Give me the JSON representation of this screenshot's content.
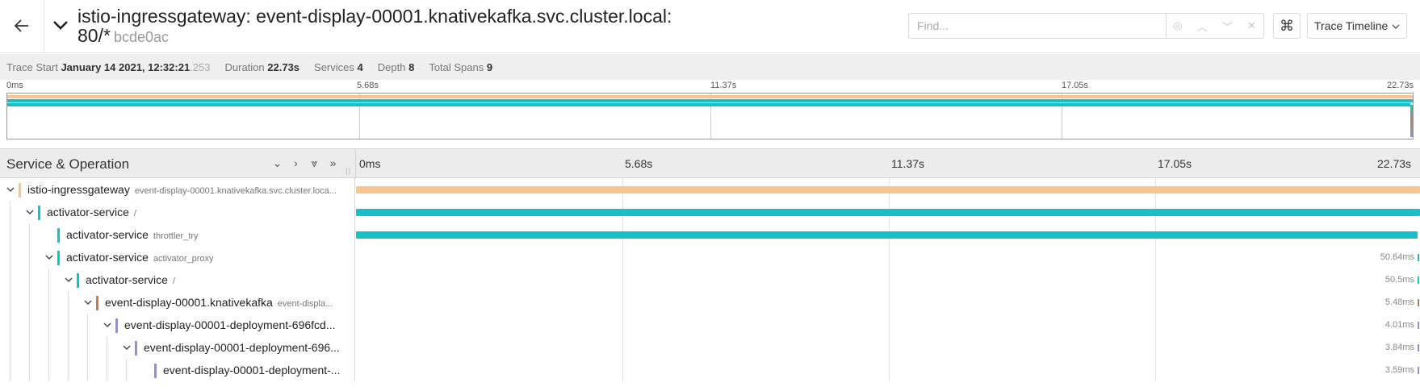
{
  "header": {
    "back_icon": "arrow-left-icon",
    "collapse_icon": "chevron-down-icon",
    "title": "istio-ingressgateway: event-display-00001.knativekafka.svc.cluster.local: 80/*",
    "trace_id": "bcde0ac",
    "find_placeholder": "Find...",
    "find_tools": [
      "target-icon",
      "chevron-up-icon",
      "chevron-down-icon",
      "close-icon"
    ],
    "keyboard_icon": "⌘",
    "view_select": "Trace Timeline"
  },
  "trace_info": {
    "start_label": "Trace Start",
    "start_value": "January 14 2021, 12:32:21",
    "start_ms": ".253",
    "duration_label": "Duration",
    "duration_value": "22.73s",
    "services_label": "Services",
    "services_value": "4",
    "depth_label": "Depth",
    "depth_value": "8",
    "spans_label": "Total Spans",
    "spans_value": "9"
  },
  "minimap": {
    "ticks": [
      "0ms",
      "5.68s",
      "11.37s",
      "17.05s",
      "22.73s"
    ]
  },
  "timeline_header": {
    "title": "Service & Operation",
    "ticks": [
      "0ms",
      "5.68s",
      "11.37s",
      "17.05s",
      "22.73s"
    ]
  },
  "colors": {
    "istio": "#f9c48e",
    "activator": "#17c0c9",
    "knativekafka": "#b97f5d",
    "deployment": "#8f8fe0"
  },
  "spans": [
    {
      "service": "istio-ingressgateway",
      "operation": "event-display-00001.knativekafka.svc.cluster.loca...",
      "depth": 0,
      "expanded": true,
      "color": "#f9c48e",
      "duration": "",
      "start_frac": 0.0,
      "width_frac": 1.0
    },
    {
      "service": "activator-service",
      "operation": "/",
      "depth": 1,
      "expanded": true,
      "color": "#17c0c9",
      "duration": "",
      "start_frac": 0.0,
      "width_frac": 1.0
    },
    {
      "service": "activator-service",
      "operation": "throttler_try",
      "depth": 2,
      "expanded": null,
      "color": "#17c0c9",
      "duration": "",
      "start_frac": 0.0,
      "width_frac": 0.998
    },
    {
      "service": "activator-service",
      "operation": "activator_proxy",
      "depth": 2,
      "expanded": true,
      "color": "#17c0c9",
      "duration": "50.64ms",
      "start_frac": 0.998,
      "width_frac": 0.002
    },
    {
      "service": "activator-service",
      "operation": "/",
      "depth": 3,
      "expanded": true,
      "color": "#17c0c9",
      "duration": "50.5ms",
      "start_frac": 0.998,
      "width_frac": 0.002
    },
    {
      "service": "event-display-00001.knativekafka",
      "operation": "event-displa...",
      "depth": 4,
      "expanded": true,
      "color": "#b97f5d",
      "duration": "5.48ms",
      "start_frac": 0.999,
      "width_frac": 0.001
    },
    {
      "service": "event-display-00001-deployment-696fcd...",
      "operation": "",
      "depth": 5,
      "expanded": true,
      "color": "#8f8fe0",
      "duration": "4.01ms",
      "start_frac": 0.999,
      "width_frac": 0.001
    },
    {
      "service": "event-display-00001-deployment-696...",
      "operation": "",
      "depth": 6,
      "expanded": true,
      "color": "#8f8fe0",
      "duration": "3.84ms",
      "start_frac": 0.999,
      "width_frac": 0.001
    },
    {
      "service": "event-display-00001-deployment-...",
      "operation": "",
      "depth": 7,
      "expanded": null,
      "color": "#8f8fe0",
      "duration": "3.59ms",
      "start_frac": 0.999,
      "width_frac": 0.001
    }
  ]
}
